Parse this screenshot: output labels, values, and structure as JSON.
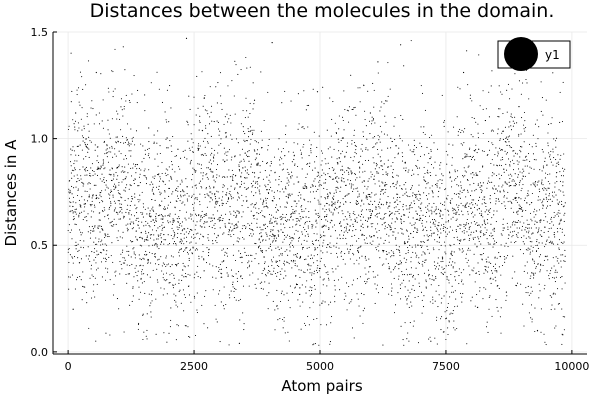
{
  "chart_data": {
    "type": "scatter",
    "title": "Distances between the molecules in the domain.",
    "xlabel": "Atom pairs",
    "ylabel": "Distances in A",
    "xlim": [
      -300,
      10300
    ],
    "ylim": [
      -0.01,
      1.5
    ],
    "x_ticks": [
      0,
      2500,
      5000,
      7500,
      10000
    ],
    "x_tick_labels": [
      "0",
      "2500",
      "5000",
      "7500",
      "10000"
    ],
    "y_ticks": [
      0.0,
      0.5,
      1.0,
      1.5
    ],
    "y_tick_labels": [
      "0.0",
      "0.5",
      "1.0",
      "1.5"
    ],
    "grid": true,
    "legend_position": "top-right",
    "series": [
      {
        "name": "y1",
        "color": "#000000",
        "marker": "circle",
        "point_count": 9870,
        "x_range": [
          1,
          9870
        ],
        "y_range": [
          0.03,
          1.46
        ],
        "y_typical": 0.65,
        "sample_points": [
          [
            100,
            0.2
          ],
          [
            150,
            1.12
          ],
          [
            230,
            0.65
          ],
          [
            420,
            0.45
          ],
          [
            560,
            1.31
          ],
          [
            700,
            0.9
          ],
          [
            980,
            0.25
          ],
          [
            1250,
            0.78
          ],
          [
            1600,
            1.05
          ],
          [
            1900,
            0.55
          ],
          [
            2180,
            0.95
          ],
          [
            2350,
            1.47
          ],
          [
            2700,
            0.38
          ],
          [
            2900,
            1.08
          ],
          [
            3200,
            0.62
          ],
          [
            3400,
            0.04
          ],
          [
            3700,
            1.18
          ],
          [
            4050,
            1.45
          ],
          [
            4300,
            0.92
          ],
          [
            4600,
            0.3
          ],
          [
            4950,
            1.22
          ],
          [
            5150,
            0.74
          ],
          [
            5600,
            0.48
          ],
          [
            6000,
            1.12
          ],
          [
            6150,
            1.36
          ],
          [
            6600,
            1.44
          ],
          [
            6700,
            0.85
          ],
          [
            7200,
            0.05
          ],
          [
            7400,
            0.66
          ],
          [
            7850,
            1.31
          ],
          [
            8150,
            0.95
          ],
          [
            8700,
            0.28
          ],
          [
            8950,
            1.15
          ],
          [
            9200,
            0.7
          ],
          [
            9650,
            0.55
          ],
          [
            9820,
            0.08
          ]
        ]
      }
    ]
  }
}
